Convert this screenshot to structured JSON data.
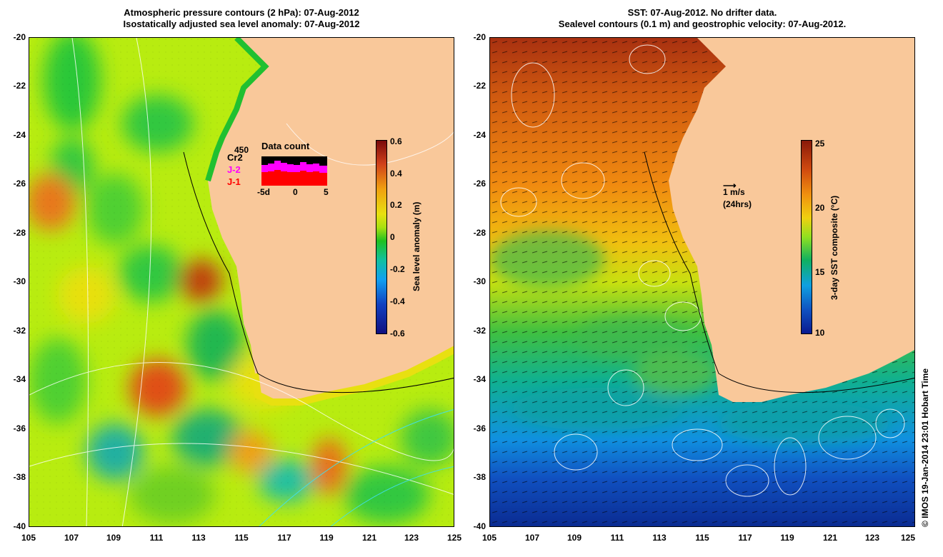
{
  "left_panel": {
    "title_line1": "Atmospheric pressure contours (2 hPa): 07-Aug-2012",
    "title_line2": "Isostatically adjusted sea level anomaly: 07-Aug-2012",
    "colorbar": {
      "title": "Sea level anomaly (m)",
      "ticks": [
        "0.6",
        "0.4",
        "0.2",
        "0",
        "-0.2",
        "-0.4",
        "-0.6"
      ]
    },
    "data_count": {
      "title": "Data count",
      "max_label": "450",
      "series": [
        "Cr2",
        "J-2",
        "J-1"
      ],
      "series_colors": [
        "#000000",
        "#ff00ff",
        "#ff0000"
      ],
      "x_ticks": [
        "-5d",
        "0",
        "5"
      ]
    }
  },
  "right_panel": {
    "title_line1": "SST: 07-Aug-2012. No drifter data.",
    "title_line2": "Sealevel contours (0.1 m) and geostrophic velocity: 07-Aug-2012.",
    "colorbar": {
      "title": "3-day SST composite (°C)",
      "ticks": [
        "25",
        "20",
        "15",
        "10"
      ]
    },
    "velocity_key": {
      "speed": "1 m/s",
      "duration": "(24hrs)"
    }
  },
  "axes": {
    "lat_ticks": [
      "-20",
      "-22",
      "-24",
      "-26",
      "-28",
      "-30",
      "-32",
      "-34",
      "-36",
      "-38",
      "-40"
    ],
    "lon_ticks": [
      "105",
      "107",
      "109",
      "111",
      "113",
      "115",
      "117",
      "119",
      "121",
      "123",
      "125"
    ]
  },
  "credit": "© IMOS 19-Jan-2014 23:01 Hobart Time",
  "colors": {
    "land": "#f9c89a",
    "ssl_scale": [
      "#7a0a0a",
      "#e8501a",
      "#f5c21a",
      "#c8f000",
      "#1cc81c",
      "#1aa0f0",
      "#1010a0"
    ],
    "sst_scale": [
      "#8a1a0a",
      "#e07010",
      "#f0c010",
      "#70e020",
      "#10b060",
      "#10a0e0",
      "#0020a0"
    ]
  }
}
